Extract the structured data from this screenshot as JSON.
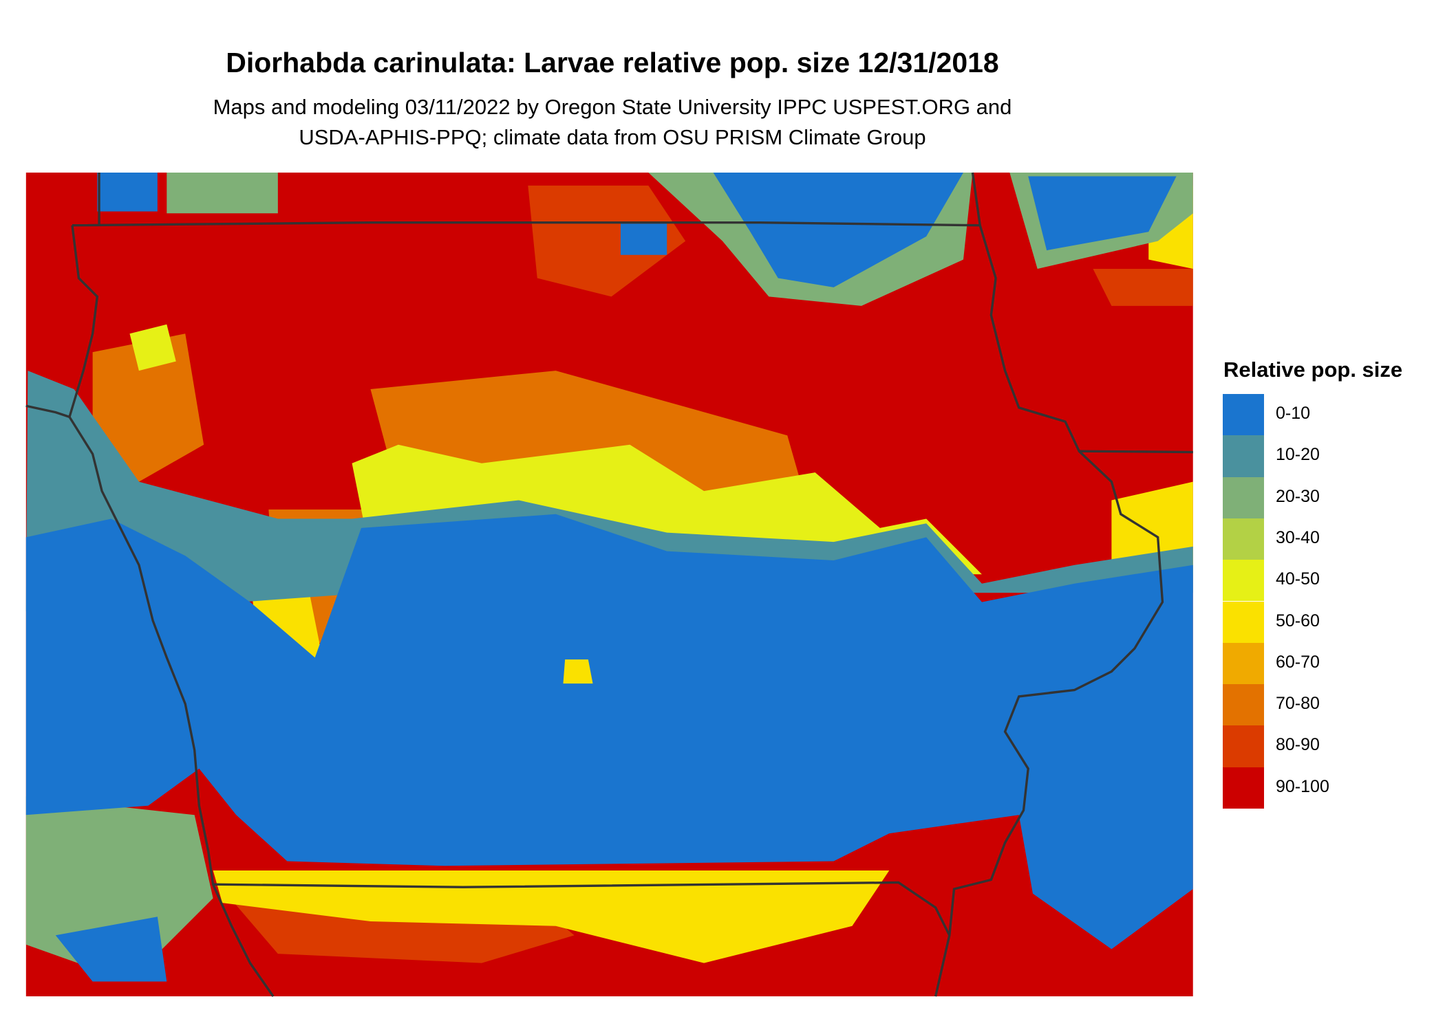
{
  "title": "Diorhabda carinulata: Larvae relative pop. size 12/31/2018",
  "subtitle_lines": [
    "Maps and modeling 03/11/2022 by Oregon State University IPPC USPEST.ORG and",
    "USDA-APHIS-PPQ; climate data from OSU PRISM Climate Group"
  ],
  "chart_data": {
    "type": "heatmap",
    "title": "Diorhabda carinulata: Larvae relative pop. size 12/31/2018",
    "legend": {
      "title": "Relative pop. size",
      "placement": "right",
      "items": [
        {
          "label": "0-10",
          "color": "#1a75cf"
        },
        {
          "label": "10-20",
          "color": "#4a919e"
        },
        {
          "label": "20-30",
          "color": "#7fb077"
        },
        {
          "label": "30-40",
          "color": "#b3d145"
        },
        {
          "label": "40-50",
          "color": "#e6f016"
        },
        {
          "label": "50-60",
          "color": "#fae100"
        },
        {
          "label": "60-70",
          "color": "#f0aa00"
        },
        {
          "label": "70-80",
          "color": "#e37200"
        },
        {
          "label": "80-90",
          "color": "#db3b00"
        },
        {
          "label": "90-100",
          "color": "#cc0000"
        }
      ]
    },
    "boundary_color": "#333333"
  }
}
